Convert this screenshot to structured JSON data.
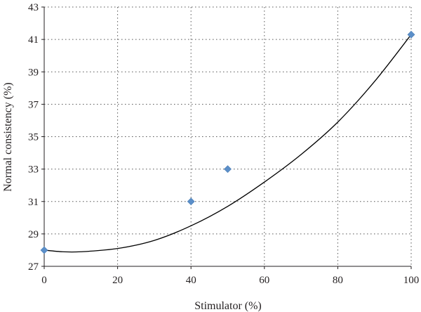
{
  "chart_data": {
    "type": "scatter",
    "title": "",
    "xlabel": "Stimulator (%)",
    "ylabel": "Normal consistency (%)",
    "xlim": [
      0,
      100
    ],
    "ylim": [
      27,
      43
    ],
    "xticks": [
      0,
      20,
      40,
      60,
      80,
      100
    ],
    "yticks": [
      27,
      29,
      31,
      33,
      35,
      37,
      39,
      41,
      43
    ],
    "grid": true,
    "legend": "none",
    "series": [
      {
        "marker": "diamond",
        "color": "#5b8fc9",
        "points": [
          {
            "x": 0,
            "y": 28
          },
          {
            "x": 40,
            "y": 31
          },
          {
            "x": 50,
            "y": 33
          },
          {
            "x": 100,
            "y": 41.3
          }
        ]
      }
    ],
    "trendline": {
      "type": "polynomial",
      "color": "#000000",
      "points": [
        {
          "x": 0,
          "y": 28.0
        },
        {
          "x": 5,
          "y": 27.9
        },
        {
          "x": 10,
          "y": 27.9
        },
        {
          "x": 20,
          "y": 28.1
        },
        {
          "x": 30,
          "y": 28.6
        },
        {
          "x": 40,
          "y": 29.5
        },
        {
          "x": 50,
          "y": 30.7
        },
        {
          "x": 60,
          "y": 32.2
        },
        {
          "x": 70,
          "y": 33.9
        },
        {
          "x": 80,
          "y": 35.9
        },
        {
          "x": 90,
          "y": 38.4
        },
        {
          "x": 100,
          "y": 41.3
        }
      ]
    }
  }
}
